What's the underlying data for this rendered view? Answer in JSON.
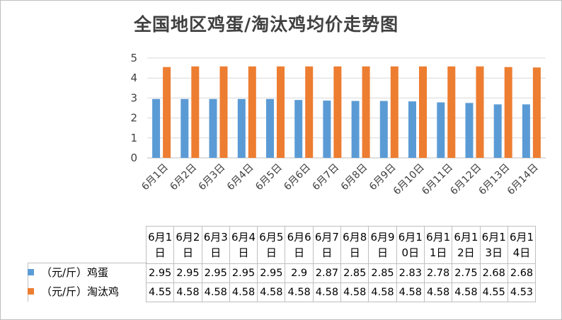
{
  "chart_data": {
    "type": "bar",
    "title": "全国地区鸡蛋/淘汰鸡均价走势图",
    "categories": [
      "6月1日",
      "6月2日",
      "6月3日",
      "6月4日",
      "6月5日",
      "6月6日",
      "6月7日",
      "6月8日",
      "6月9日",
      "6月10日",
      "6月11日",
      "6月12日",
      "6月13日",
      "6月14日"
    ],
    "table_headers": [
      "6月1日",
      "6月2日",
      "6月3日",
      "6月4日",
      "6月5日",
      "6月6日",
      "6月7日",
      "6月8日",
      "6月9日",
      "6月10日",
      "6月11日",
      "6月12日",
      "6月13日",
      "6月14日"
    ],
    "series": [
      {
        "name": "（元/斤）鸡蛋",
        "color": "#5b9bd5",
        "values": [
          2.95,
          2.95,
          2.95,
          2.95,
          2.95,
          2.9,
          2.87,
          2.85,
          2.85,
          2.83,
          2.78,
          2.75,
          2.68,
          2.68
        ]
      },
      {
        "name": "（元/斤）淘汰鸡",
        "color": "#ed7d31",
        "values": [
          4.55,
          4.58,
          4.58,
          4.58,
          4.58,
          4.58,
          4.58,
          4.58,
          4.58,
          4.58,
          4.58,
          4.58,
          4.55,
          4.53
        ]
      }
    ],
    "value_labels": [
      [
        "2.95",
        "2.95",
        "2.95",
        "2.95",
        "2.95",
        "2.9",
        "2.87",
        "2.85",
        "2.85",
        "2.83",
        "2.78",
        "2.75",
        "2.68",
        "2.68"
      ],
      [
        "4.55",
        "4.58",
        "4.58",
        "4.58",
        "4.58",
        "4.58",
        "4.58",
        "4.58",
        "4.58",
        "4.58",
        "4.58",
        "4.58",
        "4.55",
        "4.53"
      ]
    ],
    "yticks": [
      "0",
      "1",
      "2",
      "3",
      "4",
      "5"
    ],
    "ylim": [
      0,
      5
    ],
    "grid": true,
    "legend": "data-table"
  }
}
